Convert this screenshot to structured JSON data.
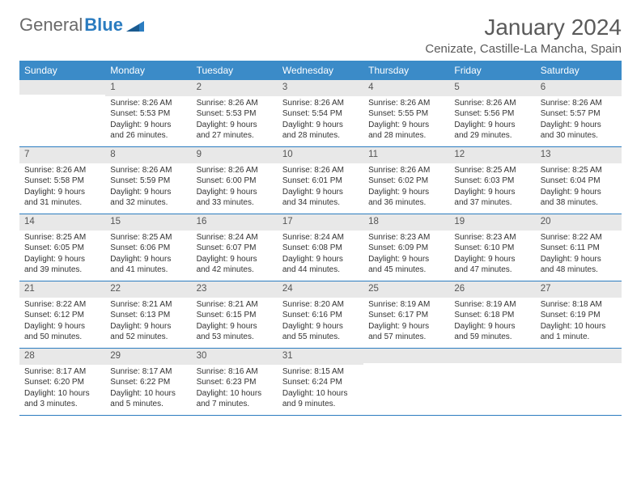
{
  "logo": {
    "text1": "General",
    "text2": "Blue"
  },
  "title": "January 2024",
  "location": "Cenizate, Castille-La Mancha, Spain",
  "colors": {
    "header_bg": "#3b8bc8",
    "header_text": "#ffffff",
    "num_bg": "#e8e8e8",
    "border": "#2b7cc0",
    "logo_gray": "#6a6a6a",
    "logo_blue": "#2b7cc0",
    "text": "#333333"
  },
  "day_names": [
    "Sunday",
    "Monday",
    "Tuesday",
    "Wednesday",
    "Thursday",
    "Friday",
    "Saturday"
  ],
  "weeks": [
    [
      {
        "n": "",
        "lines": []
      },
      {
        "n": "1",
        "lines": [
          "Sunrise: 8:26 AM",
          "Sunset: 5:53 PM",
          "Daylight: 9 hours and 26 minutes."
        ]
      },
      {
        "n": "2",
        "lines": [
          "Sunrise: 8:26 AM",
          "Sunset: 5:53 PM",
          "Daylight: 9 hours and 27 minutes."
        ]
      },
      {
        "n": "3",
        "lines": [
          "Sunrise: 8:26 AM",
          "Sunset: 5:54 PM",
          "Daylight: 9 hours and 28 minutes."
        ]
      },
      {
        "n": "4",
        "lines": [
          "Sunrise: 8:26 AM",
          "Sunset: 5:55 PM",
          "Daylight: 9 hours and 28 minutes."
        ]
      },
      {
        "n": "5",
        "lines": [
          "Sunrise: 8:26 AM",
          "Sunset: 5:56 PM",
          "Daylight: 9 hours and 29 minutes."
        ]
      },
      {
        "n": "6",
        "lines": [
          "Sunrise: 8:26 AM",
          "Sunset: 5:57 PM",
          "Daylight: 9 hours and 30 minutes."
        ]
      }
    ],
    [
      {
        "n": "7",
        "lines": [
          "Sunrise: 8:26 AM",
          "Sunset: 5:58 PM",
          "Daylight: 9 hours and 31 minutes."
        ]
      },
      {
        "n": "8",
        "lines": [
          "Sunrise: 8:26 AM",
          "Sunset: 5:59 PM",
          "Daylight: 9 hours and 32 minutes."
        ]
      },
      {
        "n": "9",
        "lines": [
          "Sunrise: 8:26 AM",
          "Sunset: 6:00 PM",
          "Daylight: 9 hours and 33 minutes."
        ]
      },
      {
        "n": "10",
        "lines": [
          "Sunrise: 8:26 AM",
          "Sunset: 6:01 PM",
          "Daylight: 9 hours and 34 minutes."
        ]
      },
      {
        "n": "11",
        "lines": [
          "Sunrise: 8:26 AM",
          "Sunset: 6:02 PM",
          "Daylight: 9 hours and 36 minutes."
        ]
      },
      {
        "n": "12",
        "lines": [
          "Sunrise: 8:25 AM",
          "Sunset: 6:03 PM",
          "Daylight: 9 hours and 37 minutes."
        ]
      },
      {
        "n": "13",
        "lines": [
          "Sunrise: 8:25 AM",
          "Sunset: 6:04 PM",
          "Daylight: 9 hours and 38 minutes."
        ]
      }
    ],
    [
      {
        "n": "14",
        "lines": [
          "Sunrise: 8:25 AM",
          "Sunset: 6:05 PM",
          "Daylight: 9 hours and 39 minutes."
        ]
      },
      {
        "n": "15",
        "lines": [
          "Sunrise: 8:25 AM",
          "Sunset: 6:06 PM",
          "Daylight: 9 hours and 41 minutes."
        ]
      },
      {
        "n": "16",
        "lines": [
          "Sunrise: 8:24 AM",
          "Sunset: 6:07 PM",
          "Daylight: 9 hours and 42 minutes."
        ]
      },
      {
        "n": "17",
        "lines": [
          "Sunrise: 8:24 AM",
          "Sunset: 6:08 PM",
          "Daylight: 9 hours and 44 minutes."
        ]
      },
      {
        "n": "18",
        "lines": [
          "Sunrise: 8:23 AM",
          "Sunset: 6:09 PM",
          "Daylight: 9 hours and 45 minutes."
        ]
      },
      {
        "n": "19",
        "lines": [
          "Sunrise: 8:23 AM",
          "Sunset: 6:10 PM",
          "Daylight: 9 hours and 47 minutes."
        ]
      },
      {
        "n": "20",
        "lines": [
          "Sunrise: 8:22 AM",
          "Sunset: 6:11 PM",
          "Daylight: 9 hours and 48 minutes."
        ]
      }
    ],
    [
      {
        "n": "21",
        "lines": [
          "Sunrise: 8:22 AM",
          "Sunset: 6:12 PM",
          "Daylight: 9 hours and 50 minutes."
        ]
      },
      {
        "n": "22",
        "lines": [
          "Sunrise: 8:21 AM",
          "Sunset: 6:13 PM",
          "Daylight: 9 hours and 52 minutes."
        ]
      },
      {
        "n": "23",
        "lines": [
          "Sunrise: 8:21 AM",
          "Sunset: 6:15 PM",
          "Daylight: 9 hours and 53 minutes."
        ]
      },
      {
        "n": "24",
        "lines": [
          "Sunrise: 8:20 AM",
          "Sunset: 6:16 PM",
          "Daylight: 9 hours and 55 minutes."
        ]
      },
      {
        "n": "25",
        "lines": [
          "Sunrise: 8:19 AM",
          "Sunset: 6:17 PM",
          "Daylight: 9 hours and 57 minutes."
        ]
      },
      {
        "n": "26",
        "lines": [
          "Sunrise: 8:19 AM",
          "Sunset: 6:18 PM",
          "Daylight: 9 hours and 59 minutes."
        ]
      },
      {
        "n": "27",
        "lines": [
          "Sunrise: 8:18 AM",
          "Sunset: 6:19 PM",
          "Daylight: 10 hours and 1 minute."
        ]
      }
    ],
    [
      {
        "n": "28",
        "lines": [
          "Sunrise: 8:17 AM",
          "Sunset: 6:20 PM",
          "Daylight: 10 hours and 3 minutes."
        ]
      },
      {
        "n": "29",
        "lines": [
          "Sunrise: 8:17 AM",
          "Sunset: 6:22 PM",
          "Daylight: 10 hours and 5 minutes."
        ]
      },
      {
        "n": "30",
        "lines": [
          "Sunrise: 8:16 AM",
          "Sunset: 6:23 PM",
          "Daylight: 10 hours and 7 minutes."
        ]
      },
      {
        "n": "31",
        "lines": [
          "Sunrise: 8:15 AM",
          "Sunset: 6:24 PM",
          "Daylight: 10 hours and 9 minutes."
        ]
      },
      {
        "n": "",
        "lines": []
      },
      {
        "n": "",
        "lines": []
      },
      {
        "n": "",
        "lines": []
      }
    ]
  ]
}
